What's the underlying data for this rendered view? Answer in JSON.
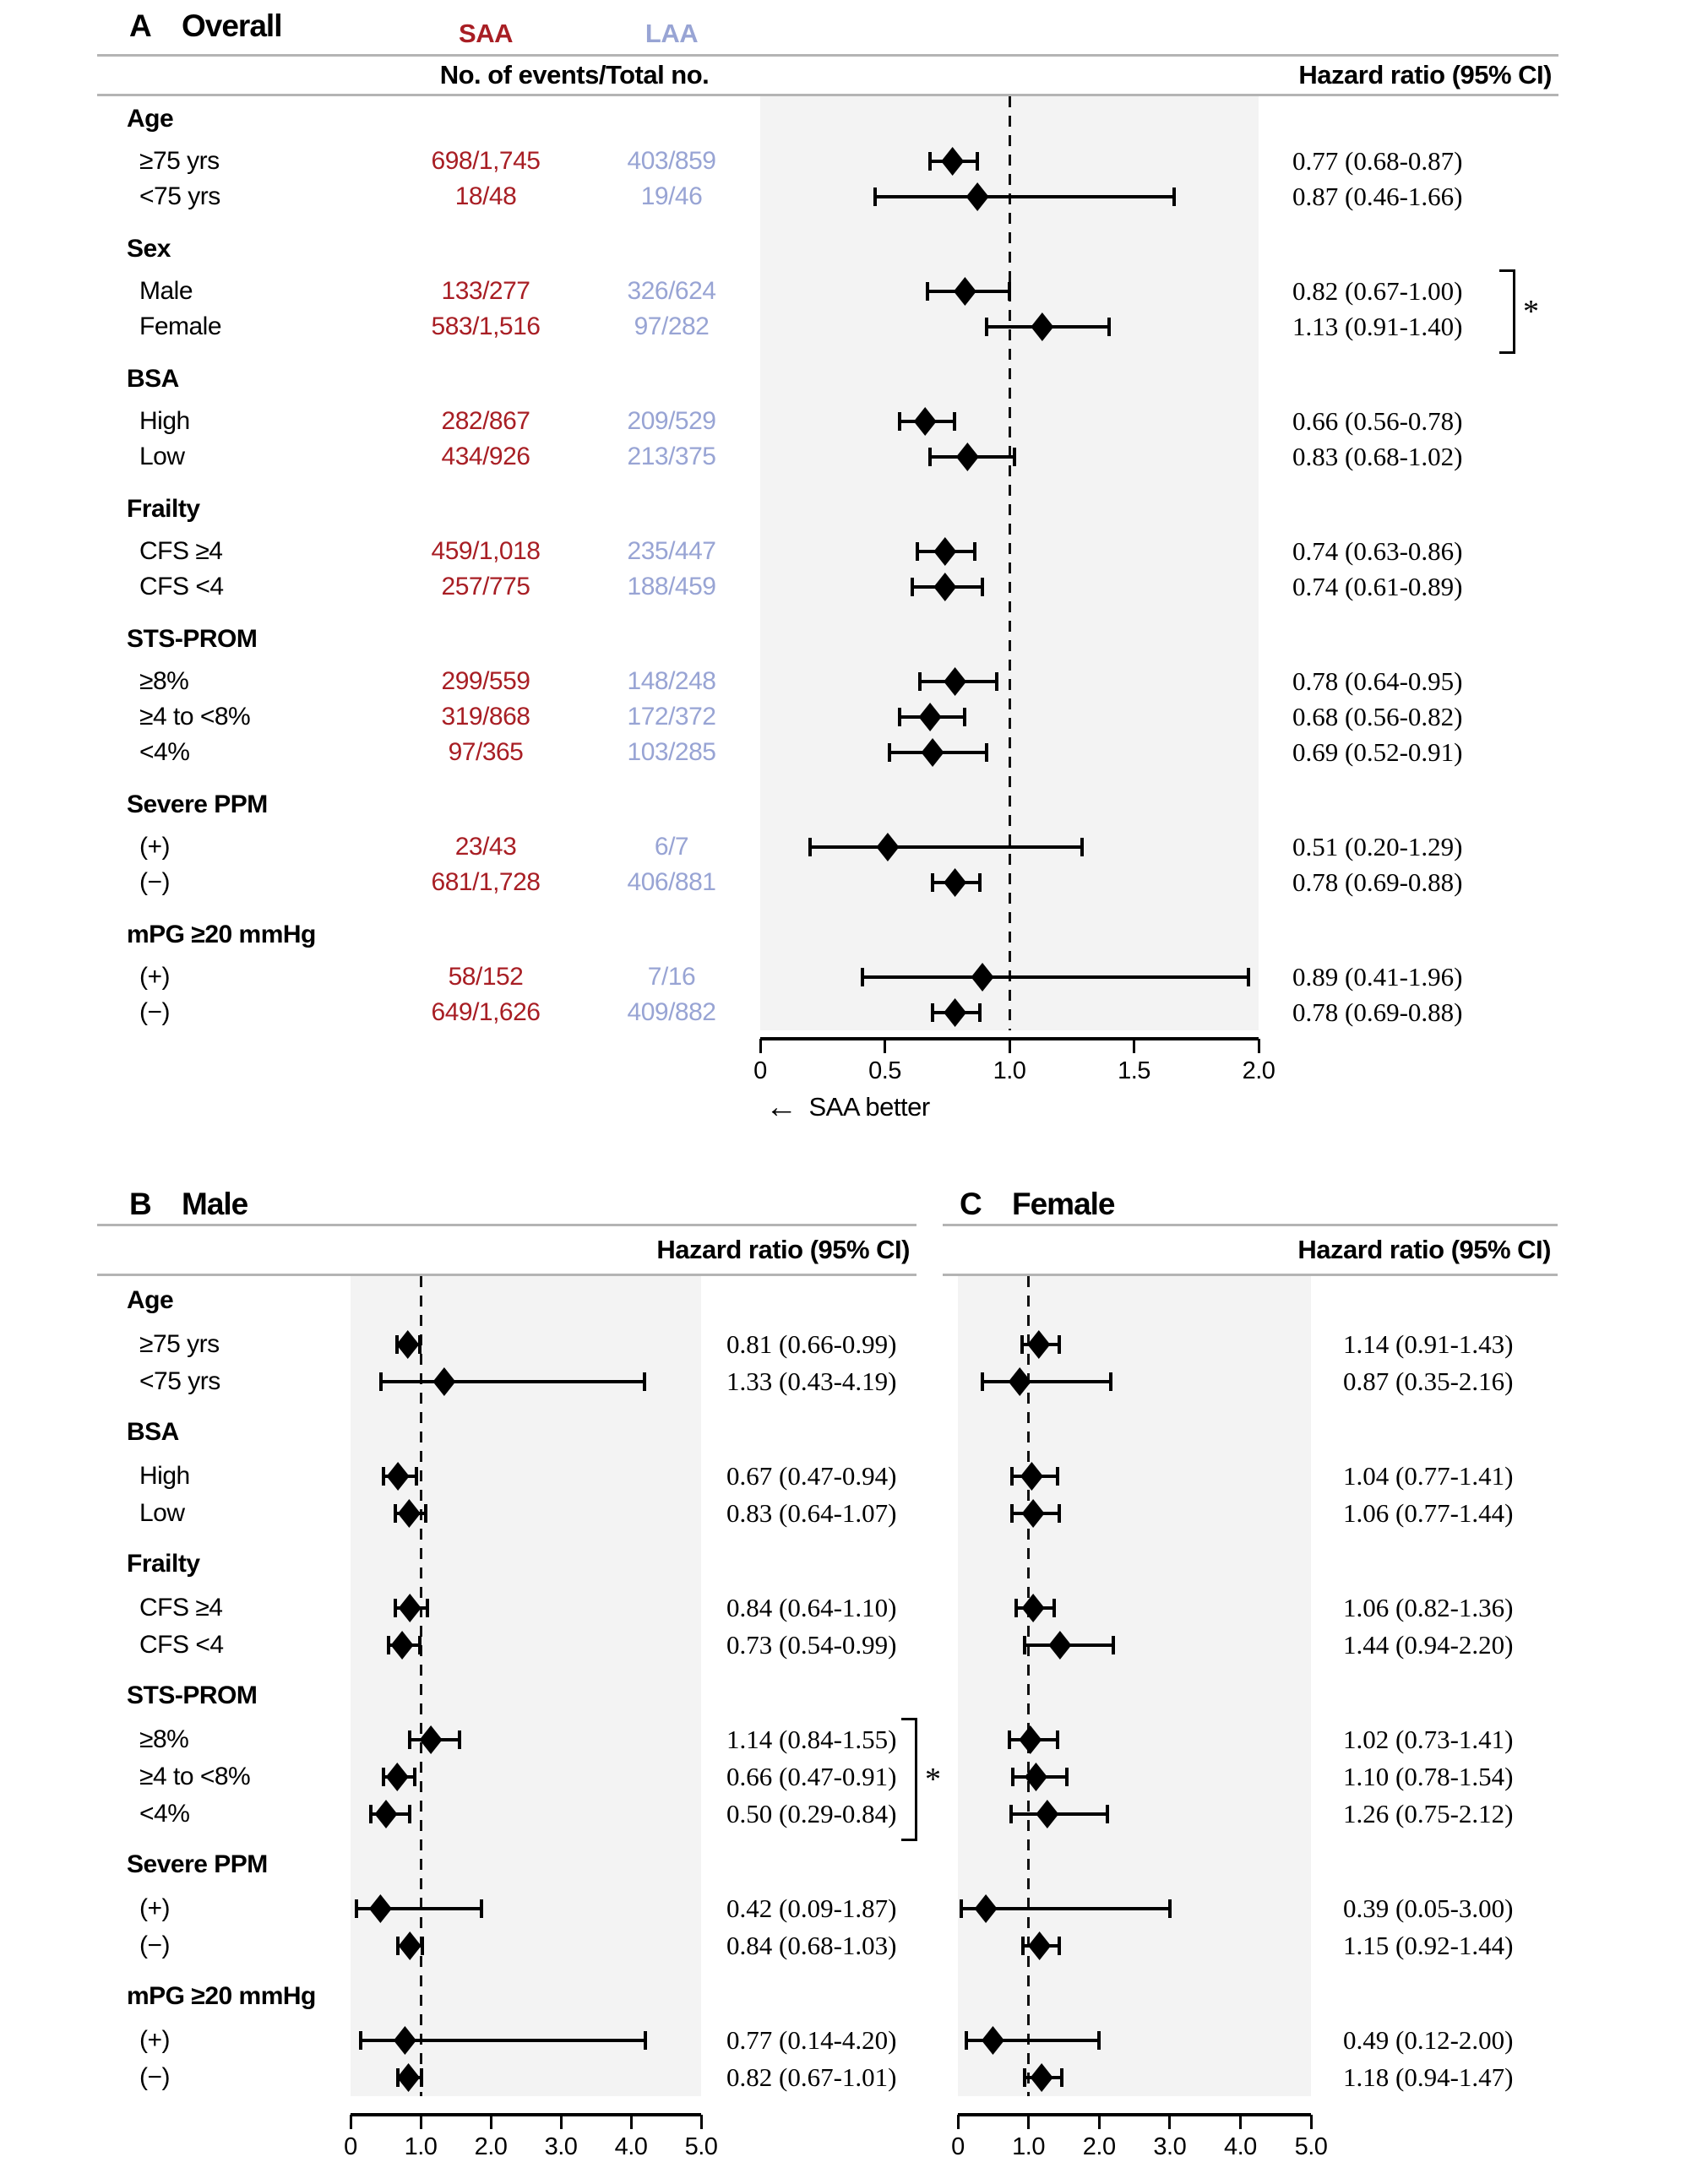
{
  "colors": {
    "saa": "#a81e24",
    "laa": "#98a4d4",
    "plot_bg": "#f3f3f3",
    "rule": "#b4b4b4",
    "marker": "#000000"
  },
  "panels": {
    "overall": {
      "letter": "A",
      "title": "Overall",
      "saa_label": "SAA",
      "laa_label": "LAA",
      "events_header": "No. of events/Total no.",
      "hr_header": "Hazard ratio (95% CI)",
      "better_note": "SAA better",
      "arrow": "←"
    },
    "male": {
      "letter": "B",
      "title": "Male",
      "hr_header": "Hazard ratio (95% CI)"
    },
    "female": {
      "letter": "C",
      "title": "Female",
      "hr_header": "Hazard ratio (95% CI)"
    }
  },
  "chart_data": [
    {
      "type": "forest",
      "id": "overall",
      "title": "Overall",
      "legend_position": "none",
      "grid": false,
      "axis": {
        "min": 0,
        "max": 2,
        "reference": 1,
        "ticks": [
          "0",
          "0.5",
          "1.0",
          "1.5",
          "2.0"
        ],
        "note": "SAA better"
      },
      "groups": [
        {
          "group": "Age",
          "rows": [
            {
              "label": "≥75 yrs",
              "saa_events": "698/1,745",
              "laa_events": "403/859",
              "hr": 0.77,
              "ci": [
                0.68,
                0.87
              ],
              "hr_text": "0.77 (0.68-0.87)"
            },
            {
              "label": "<75 yrs",
              "saa_events": "18/48",
              "laa_events": "19/46",
              "hr": 0.87,
              "ci": [
                0.46,
                1.66
              ],
              "hr_text": "0.87 (0.46-1.66)"
            }
          ]
        },
        {
          "group": "Sex",
          "bracket": "*",
          "rows": [
            {
              "label": "Male",
              "saa_events": "133/277",
              "laa_events": "326/624",
              "hr": 0.82,
              "ci": [
                0.67,
                1.0
              ],
              "hr_text": "0.82 (0.67-1.00)"
            },
            {
              "label": "Female",
              "saa_events": "583/1,516",
              "laa_events": "97/282",
              "hr": 1.13,
              "ci": [
                0.91,
                1.4
              ],
              "hr_text": "1.13 (0.91-1.40)"
            }
          ]
        },
        {
          "group": "BSA",
          "rows": [
            {
              "label": "High",
              "saa_events": "282/867",
              "laa_events": "209/529",
              "hr": 0.66,
              "ci": [
                0.56,
                0.78
              ],
              "hr_text": "0.66 (0.56-0.78)"
            },
            {
              "label": "Low",
              "saa_events": "434/926",
              "laa_events": "213/375",
              "hr": 0.83,
              "ci": [
                0.68,
                1.02
              ],
              "hr_text": "0.83 (0.68-1.02)"
            }
          ]
        },
        {
          "group": "Frailty",
          "rows": [
            {
              "label": "CFS ≥4",
              "saa_events": "459/1,018",
              "laa_events": "235/447",
              "hr": 0.74,
              "ci": [
                0.63,
                0.86
              ],
              "hr_text": "0.74 (0.63-0.86)"
            },
            {
              "label": "CFS <4",
              "saa_events": "257/775",
              "laa_events": "188/459",
              "hr": 0.74,
              "ci": [
                0.61,
                0.89
              ],
              "hr_text": "0.74 (0.61-0.89)"
            }
          ]
        },
        {
          "group": "STS-PROM",
          "rows": [
            {
              "label": "≥8%",
              "saa_events": "299/559",
              "laa_events": "148/248",
              "hr": 0.78,
              "ci": [
                0.64,
                0.95
              ],
              "hr_text": "0.78 (0.64-0.95)"
            },
            {
              "label": "≥4 to <8%",
              "saa_events": "319/868",
              "laa_events": "172/372",
              "hr": 0.68,
              "ci": [
                0.56,
                0.82
              ],
              "hr_text": "0.68 (0.56-0.82)"
            },
            {
              "label": "<4%",
              "saa_events": "97/365",
              "laa_events": "103/285",
              "hr": 0.69,
              "ci": [
                0.52,
                0.91
              ],
              "hr_text": "0.69 (0.52-0.91)"
            }
          ]
        },
        {
          "group": "Severe PPM",
          "rows": [
            {
              "label": "(+)",
              "saa_events": "23/43",
              "laa_events": "6/7",
              "hr": 0.51,
              "ci": [
                0.2,
                1.29
              ],
              "hr_text": "0.51 (0.20-1.29)"
            },
            {
              "label": "(−)",
              "saa_events": "681/1,728",
              "laa_events": "406/881",
              "hr": 0.78,
              "ci": [
                0.69,
                0.88
              ],
              "hr_text": "0.78 (0.69-0.88)"
            }
          ]
        },
        {
          "group": "mPG ≥20 mmHg",
          "rows": [
            {
              "label": "(+)",
              "saa_events": "58/152",
              "laa_events": "7/16",
              "hr": 0.89,
              "ci": [
                0.41,
                1.96
              ],
              "hr_text": "0.89 (0.41-1.96)"
            },
            {
              "label": "(−)",
              "saa_events": "649/1,626",
              "laa_events": "409/882",
              "hr": 0.78,
              "ci": [
                0.69,
                0.88
              ],
              "hr_text": "0.78 (0.69-0.88)"
            }
          ]
        }
      ]
    },
    {
      "type": "forest",
      "id": "male",
      "title": "Male",
      "legend_position": "none",
      "grid": false,
      "axis": {
        "min": 0,
        "max": 5,
        "reference": 1,
        "ticks": [
          "0",
          "1.0",
          "2.0",
          "3.0",
          "4.0",
          "5.0"
        ]
      },
      "groups": [
        {
          "group": "Age",
          "rows": [
            {
              "label": "≥75 yrs",
              "hr": 0.81,
              "ci": [
                0.66,
                0.99
              ],
              "hr_text": "0.81 (0.66-0.99)"
            },
            {
              "label": "<75 yrs",
              "hr": 1.33,
              "ci": [
                0.43,
                4.19
              ],
              "hr_text": "1.33 (0.43-4.19)"
            }
          ]
        },
        {
          "group": "BSA",
          "rows": [
            {
              "label": "High",
              "hr": 0.67,
              "ci": [
                0.47,
                0.94
              ],
              "hr_text": "0.67 (0.47-0.94)"
            },
            {
              "label": "Low",
              "hr": 0.83,
              "ci": [
                0.64,
                1.07
              ],
              "hr_text": "0.83 (0.64-1.07)"
            }
          ]
        },
        {
          "group": "Frailty",
          "rows": [
            {
              "label": "CFS ≥4",
              "hr": 0.84,
              "ci": [
                0.64,
                1.1
              ],
              "hr_text": "0.84 (0.64-1.10)"
            },
            {
              "label": "CFS <4",
              "hr": 0.73,
              "ci": [
                0.54,
                0.99
              ],
              "hr_text": "0.73 (0.54-0.99)"
            }
          ]
        },
        {
          "group": "STS-PROM",
          "bracket": "*",
          "rows": [
            {
              "label": "≥8%",
              "hr": 1.14,
              "ci": [
                0.84,
                1.55
              ],
              "hr_text": "1.14 (0.84-1.55)"
            },
            {
              "label": "≥4 to <8%",
              "hr": 0.66,
              "ci": [
                0.47,
                0.91
              ],
              "hr_text": "0.66 (0.47-0.91)"
            },
            {
              "label": "<4%",
              "hr": 0.5,
              "ci": [
                0.29,
                0.84
              ],
              "hr_text": "0.50 (0.29-0.84)"
            }
          ]
        },
        {
          "group": "Severe PPM",
          "rows": [
            {
              "label": "(+)",
              "hr": 0.42,
              "ci": [
                0.09,
                1.87
              ],
              "hr_text": "0.42 (0.09-1.87)"
            },
            {
              "label": "(−)",
              "hr": 0.84,
              "ci": [
                0.68,
                1.03
              ],
              "hr_text": "0.84 (0.68-1.03)"
            }
          ]
        },
        {
          "group": "mPG ≥20 mmHg",
          "rows": [
            {
              "label": "(+)",
              "hr": 0.77,
              "ci": [
                0.14,
                4.2
              ],
              "hr_text": "0.77 (0.14-4.20)"
            },
            {
              "label": "(−)",
              "hr": 0.82,
              "ci": [
                0.67,
                1.01
              ],
              "hr_text": "0.82 (0.67-1.01)"
            }
          ]
        }
      ]
    },
    {
      "type": "forest",
      "id": "female",
      "title": "Female",
      "legend_position": "none",
      "grid": false,
      "axis": {
        "min": 0,
        "max": 5,
        "reference": 1,
        "ticks": [
          "0",
          "1.0",
          "2.0",
          "3.0",
          "4.0",
          "5.0"
        ]
      },
      "groups": [
        {
          "group": "Age",
          "rows": [
            {
              "label": "≥75 yrs",
              "hr": 1.14,
              "ci": [
                0.91,
                1.43
              ],
              "hr_text": "1.14 (0.91-1.43)"
            },
            {
              "label": "<75 yrs",
              "hr": 0.87,
              "ci": [
                0.35,
                2.16
              ],
              "hr_text": "0.87 (0.35-2.16)"
            }
          ]
        },
        {
          "group": "BSA",
          "rows": [
            {
              "label": "High",
              "hr": 1.04,
              "ci": [
                0.77,
                1.41
              ],
              "hr_text": "1.04 (0.77-1.41)"
            },
            {
              "label": "Low",
              "hr": 1.06,
              "ci": [
                0.77,
                1.44
              ],
              "hr_text": "1.06 (0.77-1.44)"
            }
          ]
        },
        {
          "group": "Frailty",
          "rows": [
            {
              "label": "CFS ≥4",
              "hr": 1.06,
              "ci": [
                0.82,
                1.36
              ],
              "hr_text": "1.06 (0.82-1.36)"
            },
            {
              "label": "CFS <4",
              "hr": 1.44,
              "ci": [
                0.94,
                2.2
              ],
              "hr_text": "1.44 (0.94-2.20)"
            }
          ]
        },
        {
          "group": "STS-PROM",
          "rows": [
            {
              "label": "≥8%",
              "hr": 1.02,
              "ci": [
                0.73,
                1.41
              ],
              "hr_text": "1.02 (0.73-1.41)"
            },
            {
              "label": "≥4 to <8%",
              "hr": 1.1,
              "ci": [
                0.78,
                1.54
              ],
              "hr_text": "1.10 (0.78-1.54)"
            },
            {
              "label": "<4%",
              "hr": 1.26,
              "ci": [
                0.75,
                2.12
              ],
              "hr_text": "1.26 (0.75-2.12)"
            }
          ]
        },
        {
          "group": "Severe PPM",
          "rows": [
            {
              "label": "(+)",
              "hr": 0.39,
              "ci": [
                0.05,
                3.0
              ],
              "hr_text": "0.39 (0.05-3.00)"
            },
            {
              "label": "(−)",
              "hr": 1.15,
              "ci": [
                0.92,
                1.44
              ],
              "hr_text": "1.15 (0.92-1.44)"
            }
          ]
        },
        {
          "group": "mPG ≥20 mmHg",
          "rows": [
            {
              "label": "(+)",
              "hr": 0.49,
              "ci": [
                0.12,
                2.0
              ],
              "hr_text": "0.49 (0.12-2.00)"
            },
            {
              "label": "(−)",
              "hr": 1.18,
              "ci": [
                0.94,
                1.47
              ],
              "hr_text": "1.18 (0.94-1.47)"
            }
          ]
        }
      ]
    }
  ]
}
